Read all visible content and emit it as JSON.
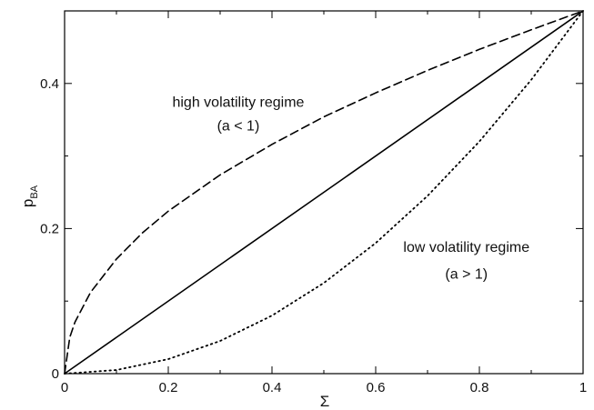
{
  "chart_data": {
    "type": "line",
    "title": "",
    "xlabel": "Σ",
    "ylabel_main": "p",
    "ylabel_sub": "BA",
    "xlim": [
      0,
      1
    ],
    "ylim": [
      0,
      0.5
    ],
    "x_ticks": [
      {
        "value": 0,
        "label": "0"
      },
      {
        "value": 0.2,
        "label": "0.2"
      },
      {
        "value": 0.4,
        "label": "0.4"
      },
      {
        "value": 0.6,
        "label": "0.6"
      },
      {
        "value": 0.8,
        "label": "0.8"
      },
      {
        "value": 1,
        "label": "1"
      }
    ],
    "y_ticks": [
      {
        "value": 0,
        "label": "0"
      },
      {
        "value": 0.2,
        "label": "0.2"
      },
      {
        "value": 0.4,
        "label": "0.4"
      }
    ],
    "grid": false,
    "legend": "none",
    "series": [
      {
        "style": "dashed",
        "color": "#000000",
        "x": [
          0,
          0.01,
          0.02,
          0.05,
          0.1,
          0.15,
          0.2,
          0.3,
          0.4,
          0.5,
          0.6,
          0.7,
          0.8,
          0.9,
          1.0
        ],
        "y": [
          0,
          0.05,
          0.071,
          0.112,
          0.158,
          0.194,
          0.224,
          0.274,
          0.316,
          0.354,
          0.387,
          0.418,
          0.447,
          0.474,
          0.5
        ]
      },
      {
        "style": "solid",
        "color": "#000000",
        "x": [
          0,
          1
        ],
        "y": [
          0,
          0.5
        ]
      },
      {
        "style": "dotted",
        "color": "#000000",
        "x": [
          0,
          0.1,
          0.2,
          0.3,
          0.4,
          0.5,
          0.6,
          0.7,
          0.8,
          0.9,
          1.0
        ],
        "y": [
          0,
          0.005,
          0.02,
          0.045,
          0.08,
          0.125,
          0.18,
          0.245,
          0.32,
          0.405,
          0.5
        ]
      }
    ],
    "annotations": [
      {
        "text": "high volatility regime",
        "x": 0.335,
        "y": 0.368
      },
      {
        "text": "(a < 1)",
        "x": 0.335,
        "y": 0.335
      },
      {
        "text": "low volatility regime",
        "x": 0.775,
        "y": 0.168
      },
      {
        "text": "(a > 1)",
        "x": 0.775,
        "y": 0.131
      }
    ]
  }
}
